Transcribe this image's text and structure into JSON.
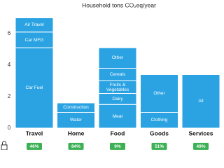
{
  "chart_data": {
    "type": "stacked_bar",
    "title": "Household tons CO₂eq/year",
    "color": "#2ba3e3",
    "ylim": [
      0,
      7.2
    ],
    "yticks": [
      0,
      2,
      4,
      6
    ],
    "categories": [
      "Travel",
      "Home",
      "Food",
      "Goods",
      "Services"
    ],
    "stacks": [
      [
        {
          "name": "Car Fuel",
          "value": 5.1
        },
        {
          "name": "Car MFG",
          "value": 1.0
        },
        {
          "name": "Air Travel",
          "value": 0.9
        }
      ],
      [
        {
          "name": "Water",
          "value": 1.0
        },
        {
          "name": "Construction",
          "value": 0.6
        }
      ],
      [
        {
          "name": "Meat",
          "value": 1.5
        },
        {
          "name": "Dairy",
          "value": 0.7
        },
        {
          "name": "Fruits & Vegetables",
          "value": 0.8
        },
        {
          "name": "Cereals",
          "value": 0.8
        },
        {
          "name": "Other",
          "value": 1.3
        }
      ],
      [
        {
          "name": "Clothing",
          "value": 1.0
        },
        {
          "name": "Other",
          "value": 2.4
        }
      ],
      [
        {
          "name": "All",
          "value": 3.4
        }
      ]
    ],
    "badges": [
      "46%",
      "84%",
      "9%",
      "51%",
      "49%"
    ],
    "badge_color": "#3cb054"
  }
}
